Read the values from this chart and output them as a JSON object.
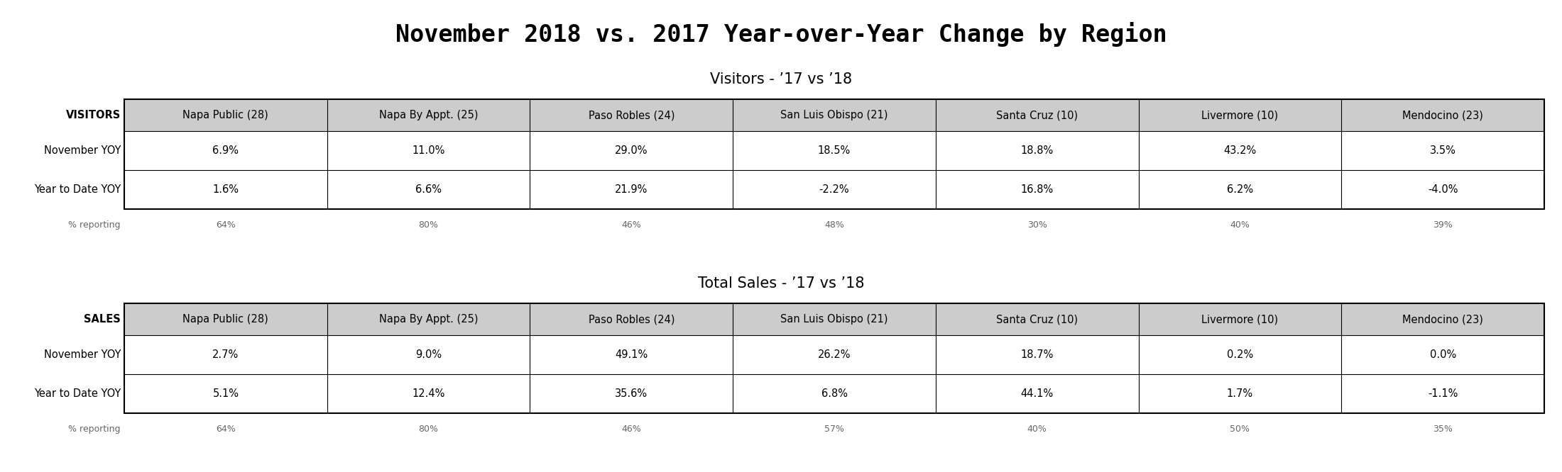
{
  "title": "November 2018 vs. 2017 Year-over-Year Change by Region",
  "visitors_subtitle": "Visitors - ’17 vs ’18",
  "sales_subtitle": "Total Sales - ’17 vs ’18",
  "columns": [
    "Napa Public (28)",
    "Napa By Appt. (25)",
    "Paso Robles (24)",
    "San Luis Obispo (21)",
    "Santa Cruz (10)",
    "Livermore (10)",
    "Mendocino (23)"
  ],
  "visitors_header_label": "VISITORS",
  "sales_header_label": "SALES",
  "visitors_rows": {
    "November YOY": [
      "6.9%",
      "11.0%",
      "29.0%",
      "18.5%",
      "18.8%",
      "43.2%",
      "3.5%"
    ],
    "Year to Date YOY": [
      "1.6%",
      "6.6%",
      "21.9%",
      "-2.2%",
      "16.8%",
      "6.2%",
      "-4.0%"
    ],
    "pct_reporting": [
      "64%",
      "80%",
      "46%",
      "48%",
      "30%",
      "40%",
      "39%"
    ]
  },
  "sales_rows": {
    "November YOY": [
      "2.7%",
      "9.0%",
      "49.1%",
      "26.2%",
      "18.7%",
      "0.2%",
      "0.0%"
    ],
    "Year to Date YOY": [
      "5.1%",
      "12.4%",
      "35.6%",
      "6.8%",
      "44.1%",
      "1.7%",
      "-1.1%"
    ],
    "pct_reporting": [
      "64%",
      "80%",
      "46%",
      "57%",
      "40%",
      "50%",
      "35%"
    ]
  },
  "background_color": "#ffffff",
  "title_fontsize": 24,
  "subtitle_fontsize": 15,
  "header_fontsize": 10.5,
  "row_label_fontsize": 10.5,
  "cell_fontsize": 10.5,
  "reporting_fontsize": 9,
  "table_header_bg": "#cccccc",
  "table_border_color": "#000000"
}
